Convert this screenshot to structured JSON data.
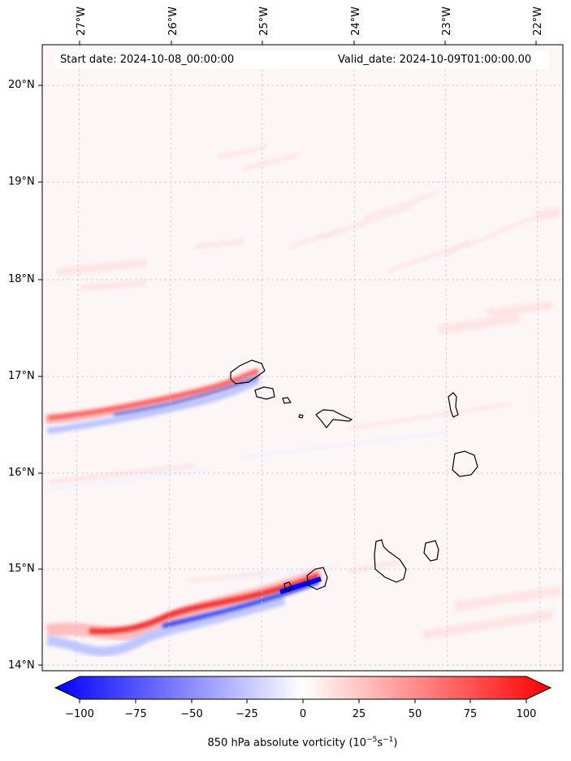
{
  "header": {
    "start_date": "Start date: 2024-10-08_00:00:00",
    "valid_date": "Valid_date: 2024-10-09T01:00:00.00"
  },
  "longitude_labels": [
    "27°W",
    "26°W",
    "25°W",
    "24°W",
    "23°W",
    "22°W"
  ],
  "latitude_labels": [
    "20°N",
    "19°N",
    "18°N",
    "17°N",
    "16°N",
    "15°N",
    "14°N"
  ],
  "colorbar": {
    "ticks": [
      "−100",
      "−75",
      "−50",
      "−25",
      "0",
      "25",
      "50",
      "75",
      "100"
    ],
    "label_main": "850 hPa absolute vorticity (10",
    "label_exp1": "−5",
    "label_mid": "s",
    "label_exp2": "−1",
    "label_end": ")",
    "min": -100,
    "max": 100,
    "colors": {
      "negative": "#0000ff",
      "zero": "#ffffff",
      "positive": "#ff0000"
    }
  },
  "map": {
    "background_color": "#fdf6f6",
    "coastline_color": "#000000",
    "gridline_color": "#c8c8c8"
  }
}
